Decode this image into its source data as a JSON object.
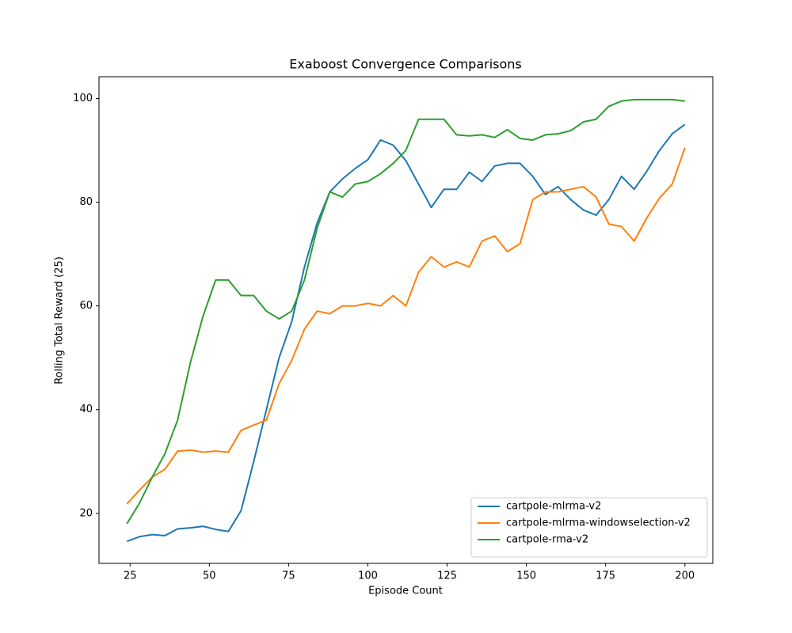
{
  "chart_data": {
    "type": "line",
    "title": "Exaboost Convergence Comparisons",
    "xlabel": "Episode Count",
    "ylabel": "Rolling Total Reward (25)",
    "x": [
      24,
      28,
      32,
      36,
      40,
      44,
      48,
      52,
      56,
      60,
      64,
      68,
      72,
      76,
      80,
      84,
      88,
      92,
      96,
      100,
      104,
      108,
      112,
      116,
      120,
      124,
      128,
      132,
      136,
      140,
      144,
      148,
      152,
      156,
      160,
      164,
      168,
      172,
      176,
      180,
      184,
      188,
      192,
      196,
      200
    ],
    "series": [
      {
        "name": "cartpole-mlrma-v2",
        "color": "#1f77b4",
        "values": [
          14.6,
          15.5,
          15.9,
          15.7,
          17.0,
          17.2,
          17.5,
          16.9,
          16.5,
          20.5,
          30,
          40,
          50,
          57,
          67.5,
          76,
          82,
          84.5,
          86.5,
          88.2,
          92,
          91,
          88,
          83.5,
          79,
          82.5,
          82.5,
          85.8,
          84,
          87,
          87.5,
          87.5,
          85,
          81.5,
          83,
          80.5,
          78.5,
          77.5,
          80.5,
          85,
          82.5,
          86,
          90,
          93.2,
          95
        ]
      },
      {
        "name": "cartpole-mlrma-windowselection-v2",
        "color": "#ff7f0e",
        "values": [
          21.8,
          24.5,
          27,
          28.5,
          32,
          32.2,
          31.8,
          32,
          31.8,
          36,
          37,
          38,
          45,
          49.5,
          55.5,
          59,
          58.5,
          60,
          60,
          60.5,
          60,
          62,
          60,
          66.5,
          69.5,
          67.5,
          68.5,
          67.5,
          72.5,
          73.5,
          70.5,
          72,
          80.5,
          82,
          82,
          82.5,
          83,
          81,
          75.8,
          75.3,
          72.5,
          77,
          80.8,
          83.5,
          90.5
        ]
      },
      {
        "name": "cartpole-rma-v2",
        "color": "#2ca02c",
        "values": [
          18,
          22,
          27,
          31.5,
          38,
          49,
          58,
          65,
          65,
          62,
          62,
          59,
          57.5,
          59,
          65,
          75,
          82,
          81,
          83.5,
          84,
          85.5,
          87.5,
          90,
          96,
          96,
          96,
          93,
          92.8,
          93,
          92.5,
          94,
          92.3,
          92,
          93,
          93.2,
          93.8,
          95.5,
          96,
          98.5,
          99.5,
          99.8,
          99.8,
          99.8,
          99.8,
          99.5
        ]
      }
    ],
    "xlim": [
      15.2,
      208.8
    ],
    "xticks": [
      25,
      50,
      75,
      100,
      125,
      150,
      175,
      200
    ],
    "ylim": [
      10.35,
      104.2
    ],
    "yticks": [
      20,
      40,
      60,
      80,
      100
    ],
    "legend": "lower right",
    "grid": false
  }
}
